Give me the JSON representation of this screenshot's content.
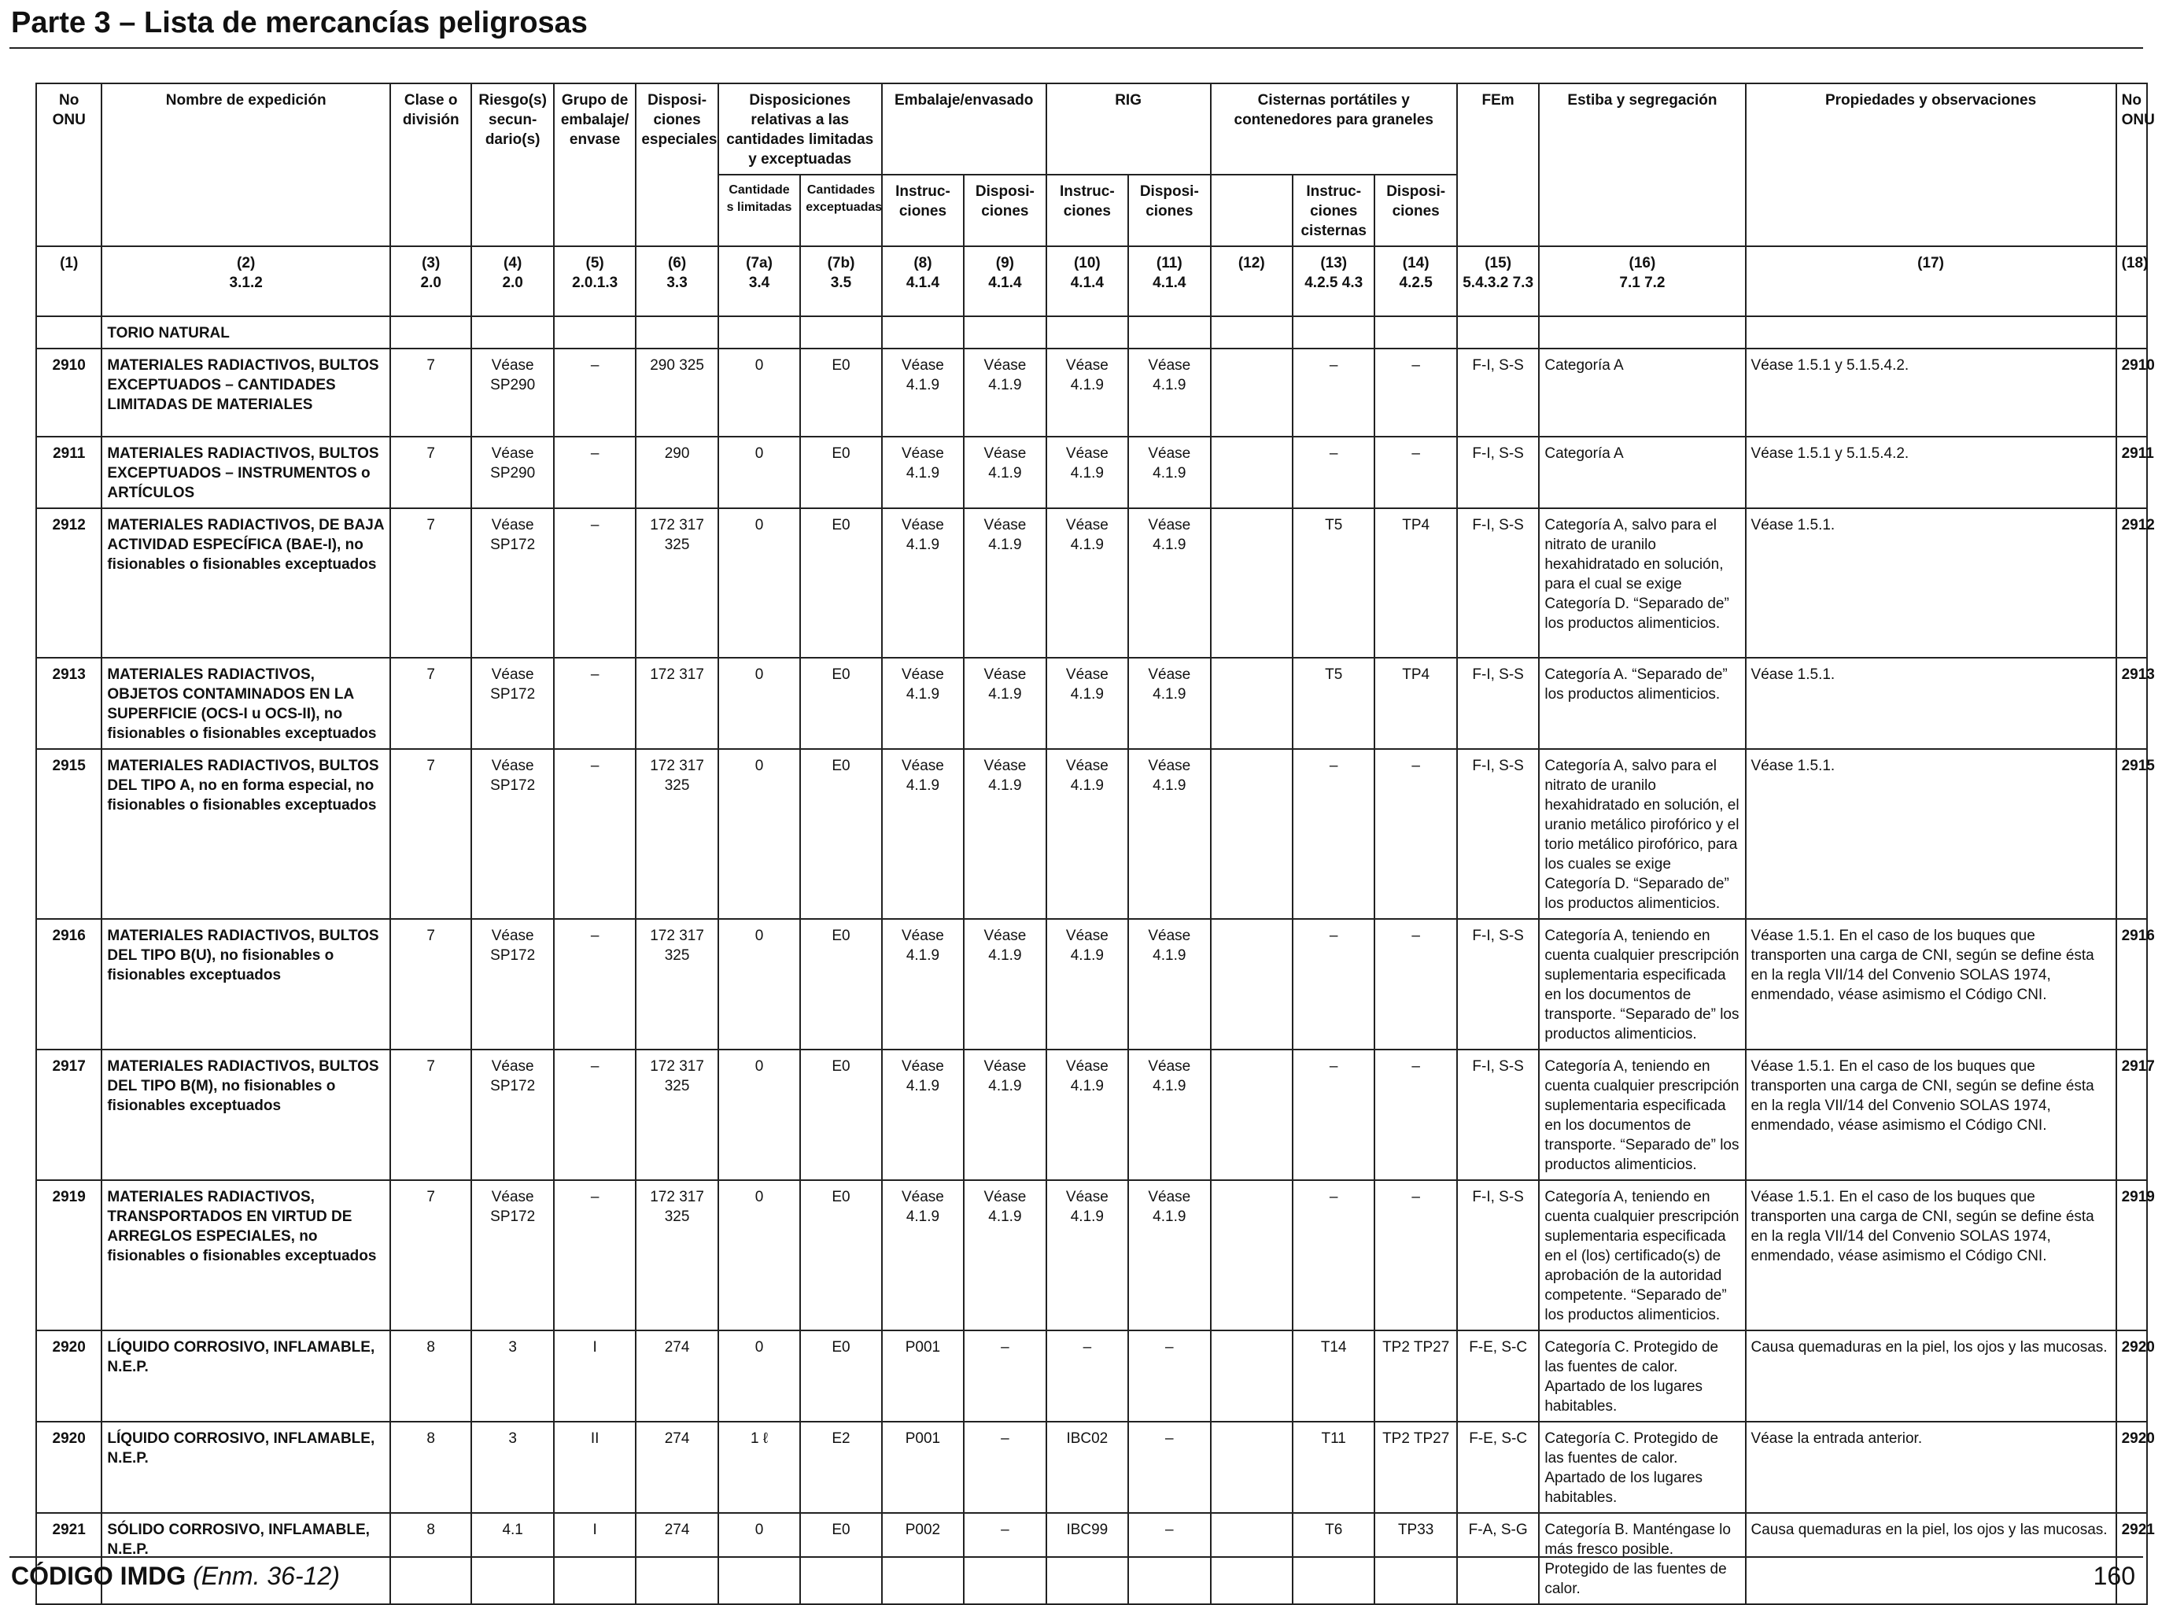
{
  "page": {
    "title": "Parte 3 – Lista de mercancías peligrosas",
    "footer_code": "CÓDIGO IMDG",
    "footer_amendment": "(Enm. 36-12)",
    "page_number": "160"
  },
  "headers": {
    "no_onu": "No ONU",
    "nombre": "Nombre de expedición",
    "clase": "Clase o división",
    "riesgo": "Riesgo(s) secun- dario(s)",
    "grupo": "Grupo de embalaje/ envase",
    "disposiciones_especiales": "Disposi- ciones especiales",
    "disp_limitadas": "Disposiciones relativas a las cantidades limitadas y exceptuadas",
    "cant_limitadas": "Cantidade s limitadas",
    "cant_exceptuadas": "Cantidades exceptuadas",
    "embalaje": "Embalaje/envasado",
    "rig": "RIG",
    "cisternas": "Cisternas portátiles y contenedores para graneles",
    "fem": "FEm",
    "estiba": "Estiba y segregación",
    "propiedades": "Propiedades y observaciones",
    "no_onu_end": "No ONU",
    "instrucciones": "Instruc- ciones",
    "disposiciones": "Disposi- ciones",
    "instr_cisternas": "Instruc- ciones cisternas"
  },
  "column_numbers": [
    {
      "n": "(1)",
      "ref": ""
    },
    {
      "n": "(2)",
      "ref": "3.1.2"
    },
    {
      "n": "(3)",
      "ref": "2.0"
    },
    {
      "n": "(4)",
      "ref": "2.0"
    },
    {
      "n": "(5)",
      "ref": "2.0.1.3"
    },
    {
      "n": "(6)",
      "ref": "3.3"
    },
    {
      "n": "(7a)",
      "ref": "3.4"
    },
    {
      "n": "(7b)",
      "ref": "3.5"
    },
    {
      "n": "(8)",
      "ref": "4.1.4"
    },
    {
      "n": "(9)",
      "ref": "4.1.4"
    },
    {
      "n": "(10)",
      "ref": "4.1.4"
    },
    {
      "n": "(11)",
      "ref": "4.1.4"
    },
    {
      "n": "(12)",
      "ref": ""
    },
    {
      "n": "(13)",
      "ref": "4.2.5 4.3"
    },
    {
      "n": "(14)",
      "ref": "4.2.5"
    },
    {
      "n": "(15)",
      "ref": "5.4.3.2 7.3"
    },
    {
      "n": "(16)",
      "ref": "7.1 7.2"
    },
    {
      "n": "(17)",
      "ref": ""
    },
    {
      "n": "(18)",
      "ref": ""
    }
  ],
  "continuation": "TORIO NATURAL",
  "rows": [
    {
      "un": "2910",
      "name": "MATERIALES RADIACTIVOS, BULTOS EXCEPTUADOS – CANTIDADES LIMITADAS DE MATERIALES",
      "class": "7",
      "sub": "Véase SP290",
      "pg": "–",
      "sp": "290 325",
      "lq": "0",
      "eq": "E0",
      "pack_i": "Véase 4.1.9",
      "pack_p": "Véase 4.1.9",
      "ibc_i": "Véase 4.1.9",
      "ibc_p": "Véase 4.1.9",
      "c12": "",
      "tank_i": "–",
      "tank_p": "–",
      "ems": "F-I, S-S",
      "stow": "Categoría A",
      "props": "Véase 1.5.1 y 5.1.5.4.2.",
      "un_end": "2910"
    },
    {
      "un": "2911",
      "name": "MATERIALES RADIACTIVOS, BULTOS EXCEPTUADOS – INSTRUMENTOS o ARTÍCULOS",
      "class": "7",
      "sub": "Véase SP290",
      "pg": "–",
      "sp": "290",
      "lq": "0",
      "eq": "E0",
      "pack_i": "Véase 4.1.9",
      "pack_p": "Véase 4.1.9",
      "ibc_i": "Véase 4.1.9",
      "ibc_p": "Véase 4.1.9",
      "c12": "",
      "tank_i": "–",
      "tank_p": "–",
      "ems": "F-I, S-S",
      "stow": "Categoría A",
      "props": "Véase 1.5.1 y 5.1.5.4.2.",
      "un_end": "2911"
    },
    {
      "un": "2912",
      "name": "MATERIALES RADIACTIVOS, DE BAJA ACTIVIDAD ESPECÍFICA (BAE-I), no fisionables o fisionables exceptuados",
      "class": "7",
      "sub": "Véase SP172",
      "pg": "–",
      "sp": "172 317 325",
      "lq": "0",
      "eq": "E0",
      "pack_i": "Véase 4.1.9",
      "pack_p": "Véase 4.1.9",
      "ibc_i": "Véase 4.1.9",
      "ibc_p": "Véase 4.1.9",
      "c12": "",
      "tank_i": "T5",
      "tank_p": "TP4",
      "ems": "F-I, S-S",
      "stow": "Categoría A, salvo para el nitrato de uranilo hexahidratado en solución, para el cual se exige Categoría D. “Separado de” los productos alimenticios.",
      "props": "Véase 1.5.1.",
      "un_end": "2912"
    },
    {
      "un": "2913",
      "name": "MATERIALES RADIACTIVOS, OBJETOS CONTAMINADOS EN LA SUPERFICIE (OCS-I u OCS-II), no fisionables o fisionables exceptuados",
      "class": "7",
      "sub": "Véase SP172",
      "pg": "–",
      "sp": "172 317",
      "lq": "0",
      "eq": "E0",
      "pack_i": "Véase 4.1.9",
      "pack_p": "Véase 4.1.9",
      "ibc_i": "Véase 4.1.9",
      "ibc_p": "Véase 4.1.9",
      "c12": "",
      "tank_i": "T5",
      "tank_p": "TP4",
      "ems": "F-I, S-S",
      "stow": "Categoría A. “Separado de” los productos alimenticios.",
      "props": "Véase 1.5.1.",
      "un_end": "2913"
    },
    {
      "un": "2915",
      "name": "MATERIALES RADIACTIVOS, BULTOS DEL TIPO A, no en forma especial, no fisionables o fisionables exceptuados",
      "class": "7",
      "sub": "Véase SP172",
      "pg": "–",
      "sp": "172 317 325",
      "lq": "0",
      "eq": "E0",
      "pack_i": "Véase 4.1.9",
      "pack_p": "Véase 4.1.9",
      "ibc_i": "Véase 4.1.9",
      "ibc_p": "Véase 4.1.9",
      "c12": "",
      "tank_i": "–",
      "tank_p": "–",
      "ems": "F-I, S-S",
      "stow": "Categoría A, salvo para el nitrato de uranilo hexahidratado en solución, el uranio metálico pirofórico y el torio metálico pirofórico, para los cuales se exige Categoría D. “Separado de” los productos alimenticios.",
      "props": "Véase 1.5.1.",
      "un_end": "2915"
    },
    {
      "un": "2916",
      "name": "MATERIALES RADIACTIVOS, BULTOS DEL TIPO B(U), no fisionables o fisionables exceptuados",
      "class": "7",
      "sub": "Véase SP172",
      "pg": "–",
      "sp": "172 317 325",
      "lq": "0",
      "eq": "E0",
      "pack_i": "Véase 4.1.9",
      "pack_p": "Véase 4.1.9",
      "ibc_i": "Véase 4.1.9",
      "ibc_p": "Véase 4.1.9",
      "c12": "",
      "tank_i": "–",
      "tank_p": "–",
      "ems": "F-I, S-S",
      "stow": "Categoría A, teniendo en cuenta cualquier prescripción suplementaria especificada en los documentos de transporte. “Separado de” los productos alimenticios.",
      "props": "Véase 1.5.1. En el caso de los buques que transporten una carga de CNI, según se define ésta en la regla VII/14 del Convenio SOLAS 1974, enmendado, véase asimismo el Código CNI.",
      "un_end": "2916"
    },
    {
      "un": "2917",
      "name": "MATERIALES RADIACTIVOS, BULTOS DEL TIPO B(M), no fisionables o fisionables exceptuados",
      "class": "7",
      "sub": "Véase SP172",
      "pg": "–",
      "sp": "172 317 325",
      "lq": "0",
      "eq": "E0",
      "pack_i": "Véase 4.1.9",
      "pack_p": "Véase 4.1.9",
      "ibc_i": "Véase 4.1.9",
      "ibc_p": "Véase 4.1.9",
      "c12": "",
      "tank_i": "–",
      "tank_p": "–",
      "ems": "F-I, S-S",
      "stow": "Categoría A, teniendo en cuenta cualquier prescripción suplementaria especificada en los documentos de transporte. “Separado de” los productos alimenticios.",
      "props": "Véase 1.5.1. En el caso de los buques que transporten una carga de CNI, según se define ésta en la regla VII/14 del Convenio SOLAS 1974, enmendado, véase asimismo el Código CNI.",
      "un_end": "2917"
    },
    {
      "un": "2919",
      "name": "MATERIALES RADIACTIVOS, TRANSPORTADOS EN VIRTUD DE ARREGLOS ESPECIALES, no fisionables o fisionables exceptuados",
      "class": "7",
      "sub": "Véase SP172",
      "pg": "–",
      "sp": "172 317 325",
      "lq": "0",
      "eq": "E0",
      "pack_i": "Véase 4.1.9",
      "pack_p": "Véase 4.1.9",
      "ibc_i": "Véase 4.1.9",
      "ibc_p": "Véase 4.1.9",
      "c12": "",
      "tank_i": "–",
      "tank_p": "–",
      "ems": "F-I, S-S",
      "stow": "Categoría A, teniendo en cuenta cualquier prescripción suplementaria especificada en el (los) certificado(s) de aprobación de la autoridad competente. “Separado de” los productos alimenticios.",
      "props": "Véase 1.5.1. En el caso de los buques que transporten una carga de CNI, según se define ésta en la regla VII/14 del Convenio SOLAS 1974, enmendado, véase asimismo el Código CNI.",
      "un_end": "2919"
    },
    {
      "un": "2920",
      "name": "LÍQUIDO CORROSIVO, INFLAMABLE, N.E.P.",
      "class": "8",
      "sub": "3",
      "pg": "I",
      "sp": "274",
      "lq": "0",
      "eq": "E0",
      "pack_i": "P001",
      "pack_p": "–",
      "ibc_i": "–",
      "ibc_p": "–",
      "c12": "",
      "tank_i": "T14",
      "tank_p": "TP2 TP27",
      "ems": "F-E, S-C",
      "stow": "Categoría C. Protegido de las fuentes de calor. Apartado de los lugares habitables.",
      "props": "Causa quemaduras en la piel, los ojos y las mucosas.",
      "un_end": "2920"
    },
    {
      "un": "2920",
      "name": "LÍQUIDO CORROSIVO, INFLAMABLE, N.E.P.",
      "class": "8",
      "sub": "3",
      "pg": "II",
      "sp": "274",
      "lq": "1 ℓ",
      "eq": "E2",
      "pack_i": "P001",
      "pack_p": "–",
      "ibc_i": "IBC02",
      "ibc_p": "–",
      "c12": "",
      "tank_i": "T11",
      "tank_p": "TP2 TP27",
      "ems": "F-E, S-C",
      "stow": "Categoría C. Protegido de las fuentes de calor. Apartado de los lugares habitables.",
      "props": "Véase la entrada anterior.",
      "un_end": "2920"
    },
    {
      "un": "2921",
      "name": "SÓLIDO CORROSIVO, INFLAMABLE, N.E.P.",
      "class": "8",
      "sub": "4.1",
      "pg": "I",
      "sp": "274",
      "lq": "0",
      "eq": "E0",
      "pack_i": "P002",
      "pack_p": "–",
      "ibc_i": "IBC99",
      "ibc_p": "–",
      "c12": "",
      "tank_i": "T6",
      "tank_p": "TP33",
      "ems": "F-A, S-G",
      "stow": "Categoría B. Manténgase lo más fresco posible. Protegido de las fuentes de calor.",
      "props": "Causa quemaduras en la piel, los ojos y las mucosas.",
      "un_end": "2921"
    }
  ]
}
